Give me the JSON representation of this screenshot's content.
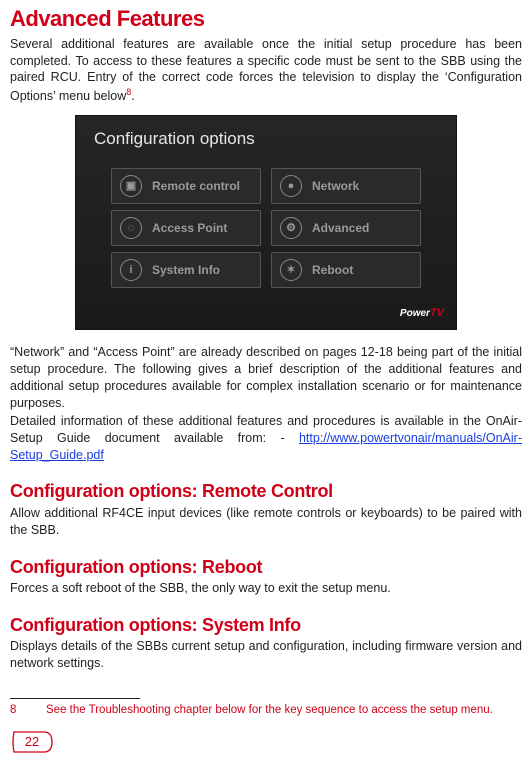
{
  "title": "Advanced Features",
  "intro": "Several additional features are available once the initial setup procedure has been completed. To access to these features a specific code must be sent to the SBB using the paired RCU. Entry of the correct code forces the television to display the ‘Configuration Options’ menu below",
  "intro_footref": "8",
  "config_screenshot": {
    "title": "Configuration options",
    "buttons": [
      {
        "icon": "▣",
        "label": "Remote control"
      },
      {
        "icon": "●",
        "label": "Network"
      },
      {
        "icon": "◌",
        "label": "Access Point"
      },
      {
        "icon": "⚙",
        "label": "Advanced"
      },
      {
        "icon": "i",
        "label": "System Info"
      },
      {
        "icon": "✶",
        "label": "Reboot"
      }
    ],
    "logo_p1": "Power",
    "logo_p2": "TV"
  },
  "para2a": "“Network” and “Access Point” are already described on pages 12-18 being part of the initial setup procedure. The following gives a brief description of the additional features and additional setup procedures available for complex installation scenario or for maintenance purposes.",
  "para2b_lead": "Detailed information of these additional features and procedures is available in the OnAir-Setup Guide document available from: - ",
  "para2b_link": "http://www.powertvonair/manuals/OnAir-Setup_Guide.pdf",
  "sections": [
    {
      "heading": "Configuration options: Remote Control",
      "body": "Allow additional RF4CE input devices (like remote controls or keyboards) to be paired with the SBB."
    },
    {
      "heading": "Configuration options: Reboot",
      "body": "Forces a soft reboot of the SBB, the only way to exit the setup menu."
    },
    {
      "heading": "Configuration options: System Info",
      "body": "Displays details of the SBBs current setup and configuration, including firmware version and network settings."
    }
  ],
  "footnote": {
    "num": "8",
    "text": "See the Troubleshooting chapter below for the key sequence to access the setup menu."
  },
  "page_number": "22"
}
